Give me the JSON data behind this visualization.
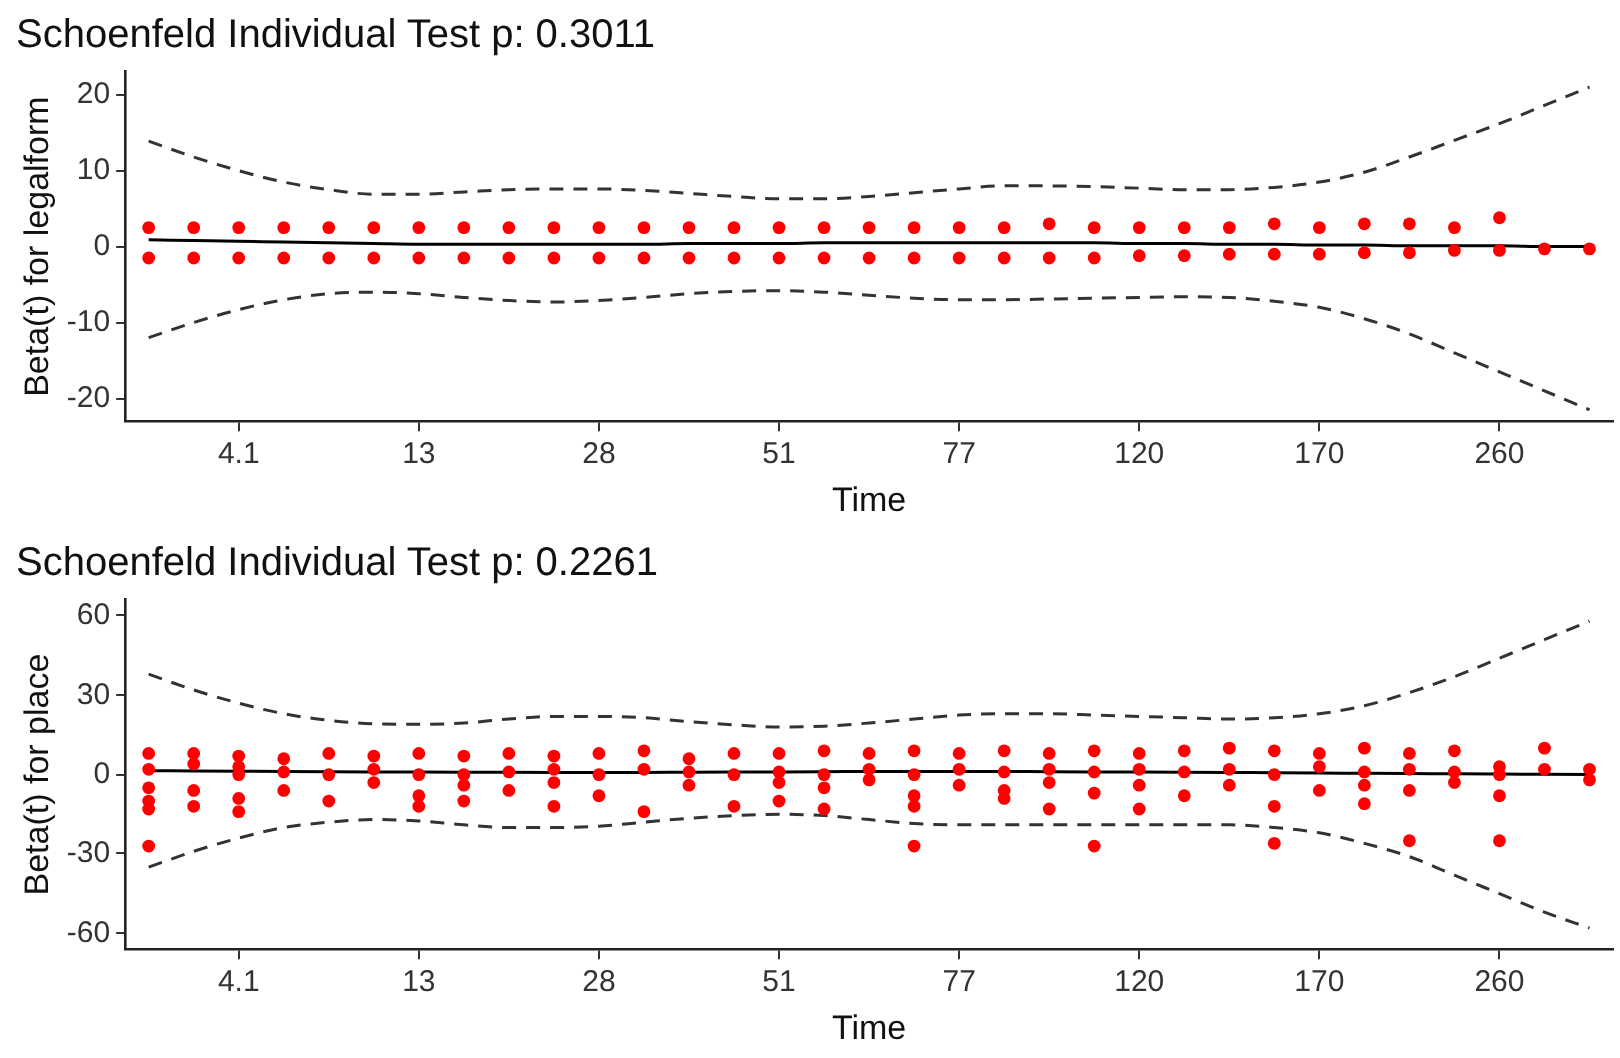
{
  "chart_data": [
    {
      "type": "scatter",
      "title": "Schoenfeld Individual Test p: 0.3011",
      "xlabel": "Time",
      "ylabel": "Beta(t) for legalform",
      "categories": [
        null,
        null,
        "4.1",
        null,
        null,
        null,
        "13",
        null,
        null,
        null,
        "28",
        null,
        null,
        null,
        "51",
        null,
        null,
        null,
        "77",
        null,
        null,
        null,
        "120",
        null,
        null,
        null,
        "170",
        null,
        null,
        null,
        "260",
        null,
        null
      ],
      "ylim": [
        -23,
        23
      ],
      "yticks": [
        -20,
        -10,
        0,
        10,
        20
      ],
      "series": [
        {
          "color": "#ff0000",
          "marker": "circle",
          "values": [
            2.5,
            2.5,
            2.5,
            2.5,
            2.5,
            2.5,
            2.5,
            2.5,
            2.5,
            2.5,
            2.5,
            2.5,
            2.5,
            2.5,
            2.5,
            2.5,
            2.5,
            2.5,
            2.5,
            2.5,
            3,
            2.5,
            2.5,
            2.5,
            2.5,
            3,
            2.5,
            3,
            3,
            2.5,
            3.8,
            null,
            null
          ]
        },
        {
          "color": "#ff0000",
          "marker": "circle",
          "values": [
            -1.5,
            -1.5,
            -1.5,
            -1.5,
            -1.5,
            -1.5,
            -1.5,
            -1.5,
            -1.5,
            -1.5,
            -1.5,
            -1.5,
            -1.5,
            -1.5,
            -1.5,
            -1.5,
            -1.5,
            -1.5,
            -1.5,
            -1.5,
            -1.5,
            -1.5,
            -1.2,
            -1.2,
            -1,
            -1,
            -1,
            -0.8,
            -0.8,
            -0.5,
            -0.5,
            -0.3,
            -0.3
          ]
        },
        {
          "type": "line",
          "color": "#000000",
          "marker": "none",
          "line_style": "solid",
          "values": [
            0.9,
            0.8,
            0.7,
            0.6,
            0.5,
            0.4,
            0.3,
            0.3,
            0.3,
            0.3,
            0.3,
            0.3,
            0.4,
            0.4,
            0.4,
            0.5,
            0.5,
            0.5,
            0.5,
            0.5,
            0.5,
            0.5,
            0.4,
            0.4,
            0.3,
            0.3,
            0.2,
            0.2,
            0.1,
            0.1,
            0.1,
            0,
            0
          ]
        },
        {
          "type": "line",
          "color": "#333333",
          "marker": "none",
          "line_style": "dashed",
          "values": [
            13.9,
            11.8,
            10,
            8.5,
            7.5,
            6.9,
            6.9,
            7.2,
            7.5,
            7.6,
            7.6,
            7.4,
            7,
            6.6,
            6.3,
            6.3,
            6.6,
            7.1,
            7.6,
            8,
            8,
            7.9,
            7.7,
            7.5,
            7.5,
            7.8,
            8.5,
            9.8,
            11.8,
            14,
            16.2,
            18.6,
            21
          ]
        },
        {
          "type": "line",
          "color": "#333333",
          "marker": "none",
          "line_style": "dashed",
          "values": [
            -12,
            -10,
            -8.3,
            -7,
            -6.2,
            -6,
            -6.2,
            -6.7,
            -7.1,
            -7.3,
            -7.1,
            -6.7,
            -6.2,
            -5.9,
            -5.8,
            -6,
            -6.4,
            -6.8,
            -7,
            -7,
            -6.9,
            -6.8,
            -6.7,
            -6.6,
            -6.7,
            -7.2,
            -8,
            -9.5,
            -11.5,
            -14,
            -16.5,
            -19,
            -21.5
          ]
        }
      ]
    },
    {
      "type": "scatter",
      "title": "Schoenfeld Individual Test p: 0.2261",
      "xlabel": "Time",
      "ylabel": "Beta(t) for place",
      "categories": [
        null,
        null,
        "4.1",
        null,
        null,
        null,
        "13",
        null,
        null,
        null,
        "28",
        null,
        null,
        null,
        "51",
        null,
        null,
        null,
        "77",
        null,
        null,
        null,
        "120",
        null,
        null,
        null,
        "170",
        null,
        null,
        null,
        "260",
        null,
        null
      ],
      "ylim": [
        -66,
        66
      ],
      "yticks": [
        -60,
        -30,
        0,
        30,
        60
      ],
      "series": [
        {
          "color": "#ff0000",
          "marker": "circle",
          "values": [
            8,
            8,
            7,
            6,
            8,
            7,
            8,
            7,
            8,
            7,
            8,
            9,
            6,
            8,
            8,
            9,
            8,
            9,
            8,
            9,
            8,
            9,
            8,
            9,
            10,
            9,
            8,
            10,
            8,
            9,
            3,
            10,
            null
          ]
        },
        {
          "color": "#ff0000",
          "marker": "circle",
          "values": [
            2,
            4,
            0,
            1,
            0,
            2,
            0,
            0,
            1,
            2,
            0,
            2,
            1,
            0,
            1,
            0,
            2,
            0,
            2,
            1,
            2,
            1,
            2,
            1,
            2,
            0,
            3,
            1,
            2,
            1,
            0,
            2,
            2
          ]
        },
        {
          "color": "#ff0000",
          "marker": "circle",
          "values": [
            -5,
            -6,
            -9,
            -6,
            null,
            -3,
            -8,
            -4,
            -6,
            -3,
            -8,
            null,
            -4,
            null,
            -3,
            -5,
            -2,
            -8,
            -4,
            -6,
            -3,
            -7,
            -4,
            -8,
            -4,
            null,
            -6,
            -4,
            -6,
            -3,
            -8,
            null,
            -2
          ]
        },
        {
          "color": "#ff0000",
          "marker": "circle",
          "values": [
            -13,
            -12,
            -14,
            null,
            -10,
            null,
            -12,
            -10,
            null,
            -12,
            null,
            -14,
            null,
            -12,
            -10,
            -13,
            null,
            -12,
            null,
            -9,
            -13,
            null,
            -13,
            null,
            null,
            -12,
            null,
            -11,
            null,
            null,
            null,
            null,
            null
          ]
        },
        {
          "color": "#ff0000",
          "marker": "circle",
          "values": [
            -27,
            null,
            null,
            null,
            null,
            null,
            null,
            null,
            null,
            null,
            null,
            null,
            null,
            null,
            null,
            null,
            null,
            -27,
            null,
            null,
            null,
            -27,
            null,
            null,
            null,
            -26,
            null,
            null,
            -25,
            null,
            -25,
            null,
            null
          ]
        },
        {
          "color": "#ff0000",
          "marker": "circle",
          "values": [
            -10,
            null,
            3,
            null,
            null,
            null,
            null,
            null,
            null,
            null,
            null,
            null,
            null,
            null,
            null,
            null,
            null,
            null,
            null,
            null,
            null,
            null,
            null,
            null,
            null,
            null,
            null,
            null,
            null,
            null,
            null,
            null,
            null
          ]
        },
        {
          "type": "line",
          "color": "#000000",
          "marker": "none",
          "line_style": "solid",
          "values": [
            1.5,
            1.4,
            1.3,
            1.2,
            1.1,
            1,
            1,
            0.9,
            0.9,
            0.8,
            0.8,
            0.8,
            0.9,
            1,
            1,
            1.1,
            1.2,
            1.2,
            1.2,
            1.2,
            1.1,
            1,
            1,
            0.9,
            0.8,
            0.7,
            0.6,
            0.5,
            0.4,
            0.3,
            0.2,
            0.1,
            0
          ]
        },
        {
          "type": "line",
          "color": "#333333",
          "marker": "none",
          "line_style": "dashed",
          "values": [
            38,
            32,
            27,
            23,
            20.5,
            19.2,
            19,
            19.5,
            21,
            22,
            22,
            21.5,
            20,
            18.8,
            18,
            18.3,
            19.5,
            21,
            22.5,
            23,
            23,
            22.5,
            22,
            21.5,
            21,
            21.5,
            23,
            26,
            31,
            37,
            44,
            51,
            58
          ]
        },
        {
          "type": "line",
          "color": "#333333",
          "marker": "none",
          "line_style": "dashed",
          "values": [
            -35,
            -29,
            -24,
            -20,
            -18,
            -17,
            -17.5,
            -19,
            -20,
            -20,
            -19.5,
            -18,
            -16.5,
            -15.5,
            -15,
            -15.5,
            -17,
            -18.5,
            -19,
            -19,
            -19,
            -19,
            -19,
            -19,
            -19,
            -20,
            -22,
            -26,
            -31,
            -38,
            -45,
            -52,
            -58
          ]
        }
      ]
    }
  ]
}
